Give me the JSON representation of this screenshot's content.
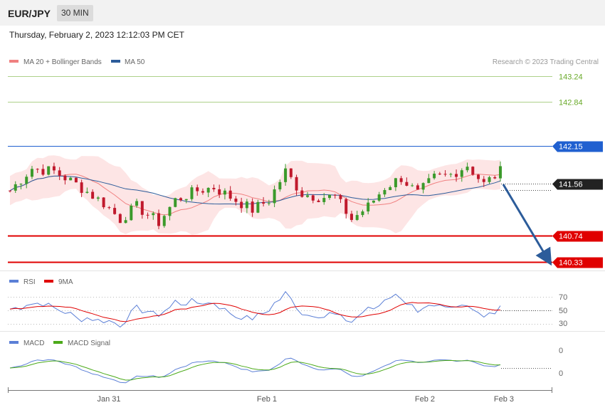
{
  "header": {
    "symbol": "EUR/JPY",
    "interval": "30 MIN",
    "datetime": "Thursday, February 2, 2023 12:12:03 PM CET"
  },
  "chart_data": {
    "type": "candlestick",
    "price_legend": [
      {
        "name": "MA 20 + Bollinger Bands",
        "color": "#f08080"
      },
      {
        "name": "MA 50",
        "color": "#2c5c9a"
      }
    ],
    "watermark": "Research © 2023 Trading Central",
    "levels": [
      {
        "value": 143.24,
        "label": "143.24",
        "style": "target",
        "color": "#6aaa2a"
      },
      {
        "value": 142.84,
        "label": "142.84",
        "style": "target",
        "color": "#6aaa2a"
      },
      {
        "value": 142.15,
        "label": "142.15",
        "style": "pivot",
        "color": "#2060d0"
      },
      {
        "value": 141.56,
        "label": "141.56",
        "style": "last",
        "color": "#222222"
      },
      {
        "value": 140.74,
        "label": "140.74",
        "style": "support",
        "color": "#e00000"
      },
      {
        "value": 140.33,
        "label": "140.33",
        "style": "support",
        "color": "#e00000"
      }
    ],
    "x_ticks": [
      "Jan 31",
      "Feb 1",
      "Feb 2",
      "Feb 3"
    ],
    "colors": {
      "up": "#3b9a2b",
      "down": "#c0192c",
      "band": "#fde0e0",
      "arrow": "#2c5c9a"
    },
    "rsi": {
      "legend": [
        {
          "name": "RSI",
          "color": "#5b7fd6"
        },
        {
          "name": "9MA",
          "color": "#e00000"
        }
      ],
      "levels": [
        "70",
        "50",
        "30"
      ]
    },
    "macd": {
      "legend": [
        {
          "name": "MACD",
          "color": "#5b7fd6"
        },
        {
          "name": "MACD Signal",
          "color": "#4caa1a"
        }
      ],
      "labels": [
        "0",
        "0"
      ]
    }
  }
}
